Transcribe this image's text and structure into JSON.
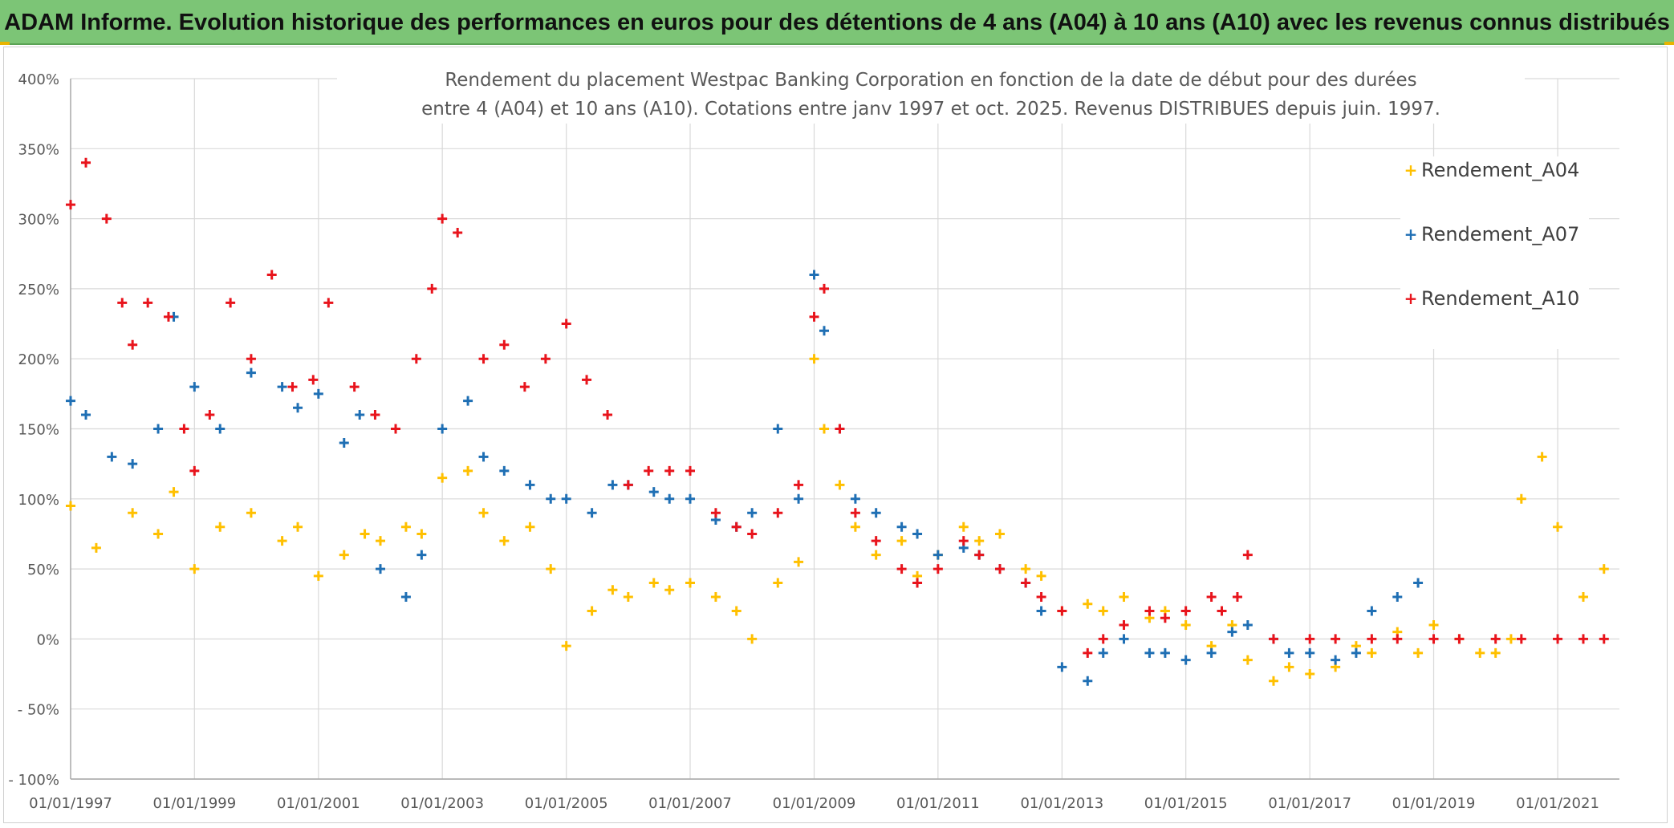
{
  "banner": {
    "title": "ADAM Informe. Evolution historique des performances en euros pour des détentions de 4 ans (A04) à 10 ans (A10) avec les revenus connus distribués"
  },
  "colors": {
    "banner_bg": "#7cc576",
    "A04": "#ffc000",
    "A07": "#1f6fb4",
    "A10": "#e8141c",
    "grid": "#d9d9d9",
    "axis": "#a6a6a6",
    "text": "#595959"
  },
  "chart_data": {
    "type": "scatter",
    "title_line1": "Rendement du placement Westpac Banking Corporation en fonction de la date de début pour des durées",
    "title_line2": "entre 4 (A04) et 10 ans (A10). Cotations entre janv 1997 et oct. 2025. Revenus DISTRIBUES depuis juin. 1997.",
    "legend_position": "right",
    "grid": true,
    "marker": "+",
    "x_type": "date",
    "xlim": [
      "1997-01-01",
      "2021-12-31"
    ],
    "ylim": [
      -100,
      400
    ],
    "y_unit": "%",
    "y_ticks": [
      400,
      350,
      300,
      250,
      200,
      150,
      100,
      50,
      0,
      -50,
      -100
    ],
    "y_tick_labels": [
      "400%",
      "350%",
      "300%",
      "250%",
      "200%",
      "150%",
      "100%",
      "50%",
      "0%",
      "- 50%",
      "- 100%"
    ],
    "x_ticks": [
      "1997-01-01",
      "1999-01-01",
      "2001-01-01",
      "2003-01-01",
      "2005-01-01",
      "2007-01-01",
      "2009-01-01",
      "2011-01-01",
      "2013-01-01",
      "2015-01-01",
      "2017-01-01",
      "2019-01-01",
      "2021-01-01"
    ],
    "x_tick_labels": [
      "01/01/1997",
      "01/01/1999",
      "01/01/2001",
      "01/01/2003",
      "01/01/2005",
      "01/01/2007",
      "01/01/2009",
      "01/01/2011",
      "01/01/2013",
      "01/01/2015",
      "01/01/2017",
      "01/01/2019",
      "01/01/2021"
    ],
    "series": [
      {
        "name": "Rendement_A04",
        "color": "#ffc000",
        "x": [
          "1997-01-01",
          "1997-06-01",
          "1998-01-01",
          "1998-06-01",
          "1998-09-01",
          "1999-01-01",
          "1999-06-01",
          "1999-12-01",
          "2000-06-01",
          "2000-09-01",
          "2001-01-01",
          "2001-06-01",
          "2001-10-01",
          "2002-01-01",
          "2002-06-01",
          "2002-09-01",
          "2003-01-01",
          "2003-06-01",
          "2003-09-01",
          "2004-01-01",
          "2004-06-01",
          "2004-10-01",
          "2005-01-01",
          "2005-06-01",
          "2005-10-01",
          "2006-01-01",
          "2006-06-01",
          "2006-09-01",
          "2007-01-01",
          "2007-06-01",
          "2007-10-01",
          "2008-01-01",
          "2008-06-01",
          "2008-10-01",
          "2009-01-01",
          "2009-03-01",
          "2009-06-01",
          "2009-09-01",
          "2010-01-01",
          "2010-06-01",
          "2010-09-01",
          "2011-01-01",
          "2011-06-01",
          "2011-09-01",
          "2012-01-01",
          "2012-06-01",
          "2012-09-01",
          "2013-01-01",
          "2013-06-01",
          "2013-09-01",
          "2014-01-01",
          "2014-06-01",
          "2014-09-01",
          "2015-01-01",
          "2015-06-01",
          "2015-10-01",
          "2016-01-01",
          "2016-06-01",
          "2016-09-01",
          "2017-01-01",
          "2017-06-01",
          "2017-10-01",
          "2018-01-01",
          "2018-06-01",
          "2018-10-01",
          "2019-01-01",
          "2019-06-01",
          "2019-10-01",
          "2020-01-01",
          "2020-04-01",
          "2020-06-01",
          "2020-10-01",
          "2021-01-01",
          "2021-06-01",
          "2021-10-01"
        ],
        "y": [
          95,
          65,
          90,
          75,
          105,
          50,
          80,
          90,
          70,
          80,
          45,
          60,
          75,
          70,
          80,
          75,
          115,
          120,
          90,
          70,
          80,
          50,
          -5,
          20,
          35,
          30,
          40,
          35,
          40,
          30,
          20,
          0,
          40,
          55,
          200,
          150,
          110,
          80,
          60,
          70,
          45,
          60,
          80,
          70,
          75,
          50,
          45,
          20,
          25,
          20,
          30,
          15,
          20,
          10,
          -5,
          10,
          -15,
          -30,
          -20,
          -25,
          -20,
          -5,
          -10,
          5,
          -10,
          10,
          0,
          -10,
          -10,
          0,
          100,
          130,
          80,
          30,
          50
        ]
      },
      {
        "name": "Rendement_A07",
        "color": "#1f6fb4",
        "x": [
          "1997-01-01",
          "1997-04-01",
          "1997-09-01",
          "1998-01-01",
          "1998-06-01",
          "1998-09-01",
          "1999-01-01",
          "1999-06-01",
          "1999-12-01",
          "2000-06-01",
          "2000-09-01",
          "2001-01-01",
          "2001-06-01",
          "2001-09-01",
          "2002-01-01",
          "2002-06-01",
          "2002-09-01",
          "2003-01-01",
          "2003-06-01",
          "2003-09-01",
          "2004-01-01",
          "2004-06-01",
          "2004-10-01",
          "2005-01-01",
          "2005-06-01",
          "2005-10-01",
          "2006-01-01",
          "2006-06-01",
          "2006-09-01",
          "2007-01-01",
          "2007-06-01",
          "2007-10-01",
          "2008-01-01",
          "2008-06-01",
          "2008-10-01",
          "2009-01-01",
          "2009-03-01",
          "2009-06-01",
          "2009-09-01",
          "2010-01-01",
          "2010-06-01",
          "2010-09-01",
          "2011-01-01",
          "2011-06-01",
          "2011-09-01",
          "2012-01-01",
          "2012-06-01",
          "2012-09-01",
          "2013-01-01",
          "2013-06-01",
          "2013-09-01",
          "2014-01-01",
          "2014-06-01",
          "2014-09-01",
          "2015-01-01",
          "2015-06-01",
          "2015-10-01",
          "2016-01-01",
          "2016-06-01",
          "2016-09-01",
          "2017-01-01",
          "2017-06-01",
          "2017-10-01",
          "2018-01-01",
          "2018-06-01",
          "2018-10-01"
        ],
        "y": [
          170,
          160,
          130,
          125,
          150,
          230,
          180,
          150,
          190,
          180,
          165,
          175,
          140,
          160,
          50,
          30,
          60,
          150,
          170,
          130,
          120,
          110,
          100,
          100,
          90,
          110,
          110,
          105,
          100,
          100,
          85,
          80,
          90,
          150,
          100,
          260,
          220,
          150,
          100,
          90,
          80,
          75,
          60,
          65,
          60,
          50,
          40,
          20,
          -20,
          -30,
          -10,
          0,
          -10,
          -10,
          -15,
          -10,
          5,
          10,
          0,
          -10,
          -10,
          -15,
          -10,
          20,
          30,
          40
        ]
      },
      {
        "name": "Rendement_A10",
        "color": "#e8141c",
        "x": [
          "1997-01-01",
          "1997-04-01",
          "1997-08-01",
          "1997-11-01",
          "1998-01-01",
          "1998-04-01",
          "1998-08-01",
          "1998-11-01",
          "1999-01-01",
          "1999-04-01",
          "1999-08-01",
          "1999-12-01",
          "2000-04-01",
          "2000-08-01",
          "2000-12-01",
          "2001-03-01",
          "2001-08-01",
          "2001-12-01",
          "2002-04-01",
          "2002-08-01",
          "2002-11-01",
          "2003-01-01",
          "2003-04-01",
          "2003-09-01",
          "2004-01-01",
          "2004-05-01",
          "2004-09-01",
          "2005-01-01",
          "2005-05-01",
          "2005-09-01",
          "2006-01-01",
          "2006-05-01",
          "2006-09-01",
          "2007-01-01",
          "2007-06-01",
          "2007-10-01",
          "2008-01-01",
          "2008-06-01",
          "2008-10-01",
          "2009-01-01",
          "2009-03-01",
          "2009-06-01",
          "2009-09-01",
          "2010-01-01",
          "2010-06-01",
          "2010-09-01",
          "2011-01-01",
          "2011-06-01",
          "2011-09-01",
          "2012-01-01",
          "2012-06-01",
          "2012-09-01",
          "2013-01-01",
          "2013-06-01",
          "2013-09-01",
          "2014-01-01",
          "2014-06-01",
          "2014-09-01",
          "2015-01-01",
          "2015-06-01",
          "2015-08-01",
          "2015-11-01",
          "2016-01-01",
          "2016-06-01",
          "2017-01-01",
          "2017-06-01",
          "2018-01-01",
          "2018-06-01",
          "2019-01-01",
          "2019-06-01",
          "2020-01-01",
          "2020-06-01",
          "2021-01-01",
          "2021-06-01",
          "2021-10-01"
        ],
        "y": [
          310,
          340,
          300,
          240,
          210,
          240,
          230,
          150,
          120,
          160,
          240,
          200,
          260,
          180,
          185,
          240,
          180,
          160,
          150,
          200,
          250,
          300,
          290,
          200,
          210,
          180,
          200,
          225,
          185,
          160,
          110,
          120,
          120,
          120,
          90,
          80,
          75,
          90,
          110,
          230,
          250,
          150,
          90,
          70,
          50,
          40,
          50,
          70,
          60,
          50,
          40,
          30,
          20,
          -10,
          0,
          10,
          20,
          15,
          20,
          30,
          20,
          30,
          60,
          0,
          0,
          0,
          0,
          0,
          0,
          0,
          0,
          0,
          0,
          0,
          0
        ]
      }
    ]
  }
}
